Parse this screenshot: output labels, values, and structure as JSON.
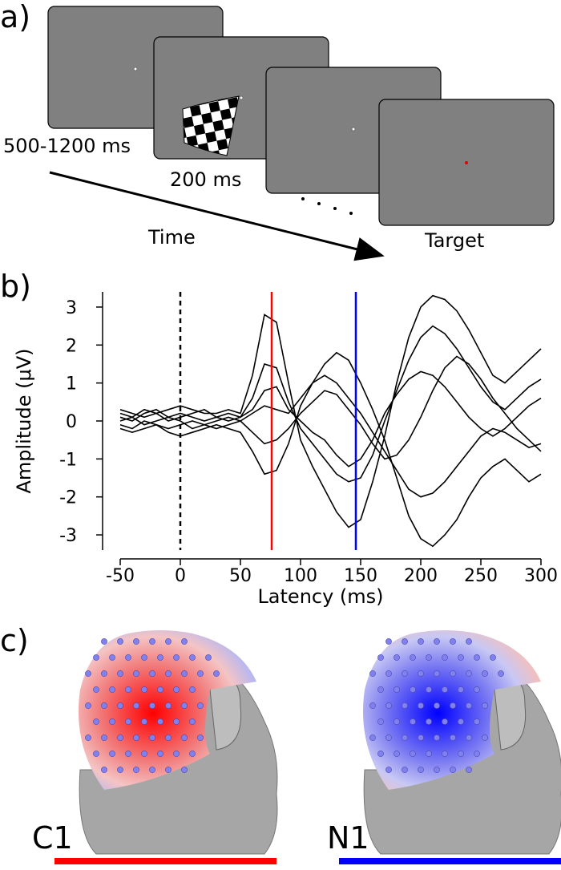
{
  "panel_labels": [
    "a)",
    "b)",
    "c)"
  ],
  "paradigm": {
    "durations": [
      "500-1200 ms",
      "200 ms"
    ],
    "time_label": "Time",
    "target_label": "Target"
  },
  "chart_data": {
    "type": "line",
    "xlabel": "Latency (ms)",
    "ylabel": "Amplitude (μV)",
    "x": [
      -50,
      -40,
      -30,
      -20,
      -10,
      0,
      10,
      20,
      30,
      40,
      50,
      60,
      70,
      80,
      90,
      100,
      110,
      120,
      130,
      140,
      150,
      160,
      170,
      180,
      190,
      200,
      210,
      220,
      230,
      240,
      250,
      260,
      270,
      280,
      290,
      300
    ],
    "series": [
      {
        "color": "#000000",
        "values": [
          0.3,
          0.2,
          0.1,
          0.2,
          0.3,
          0.4,
          0.3,
          0.2,
          0.2,
          0.3,
          0.2,
          1.2,
          2.8,
          2.6,
          1.0,
          -0.5,
          -1.2,
          -1.8,
          -2.4,
          -2.8,
          -2.6,
          -1.6,
          -0.4,
          1.0,
          2.2,
          3.0,
          3.3,
          3.2,
          2.9,
          2.4,
          1.8,
          1.2,
          1.0,
          1.3,
          1.6,
          1.9
        ]
      },
      {
        "color": "#000000",
        "values": [
          -0.2,
          -0.3,
          -0.2,
          -0.1,
          -0.3,
          -0.4,
          -0.3,
          -0.2,
          -0.1,
          -0.2,
          -0.3,
          -0.8,
          -1.4,
          -1.3,
          -0.6,
          0.4,
          1.0,
          1.5,
          1.8,
          1.6,
          1.0,
          0.3,
          -0.5,
          -1.5,
          -2.5,
          -3.1,
          -3.3,
          -3.0,
          -2.6,
          -2.0,
          -1.5,
          -1.2,
          -1.0,
          -1.3,
          -1.6,
          -1.4
        ]
      },
      {
        "color": "#000000",
        "values": [
          0.1,
          0.0,
          0.2,
          0.3,
          0.1,
          0.2,
          0.1,
          0.0,
          0.1,
          0.2,
          0.1,
          0.6,
          1.5,
          1.4,
          0.5,
          -0.2,
          -0.6,
          -1.0,
          -1.4,
          -1.6,
          -1.5,
          -0.9,
          0.0,
          0.8,
          1.6,
          2.2,
          2.5,
          2.3,
          1.9,
          1.4,
          0.9,
          0.5,
          0.3,
          0.6,
          0.9,
          1.1
        ]
      },
      {
        "color": "#000000",
        "values": [
          -0.1,
          -0.2,
          0.0,
          -0.1,
          -0.2,
          -0.1,
          0.0,
          -0.1,
          -0.2,
          -0.1,
          0.0,
          0.2,
          0.4,
          0.3,
          0.2,
          0.6,
          1.0,
          1.2,
          1.0,
          0.6,
          0.2,
          -0.3,
          -0.8,
          -1.3,
          -1.8,
          -2.0,
          -1.9,
          -1.6,
          -1.2,
          -0.8,
          -0.4,
          -0.2,
          -0.3,
          -0.5,
          -0.7,
          -0.6
        ]
      },
      {
        "color": "#000000",
        "values": [
          0.2,
          0.1,
          0.3,
          0.2,
          0.0,
          0.1,
          0.2,
          0.3,
          0.1,
          0.0,
          0.1,
          0.3,
          0.8,
          0.9,
          0.3,
          0.0,
          -0.3,
          -0.5,
          -0.9,
          -1.2,
          -1.0,
          -0.5,
          0.2,
          0.7,
          1.1,
          1.3,
          1.2,
          0.9,
          0.5,
          0.1,
          -0.2,
          -0.4,
          -0.2,
          0.1,
          0.4,
          0.6
        ]
      },
      {
        "color": "#000000",
        "values": [
          0.0,
          0.1,
          -0.1,
          0.0,
          0.1,
          0.0,
          -0.2,
          -0.1,
          0.0,
          0.1,
          0.0,
          -0.3,
          -0.6,
          -0.5,
          -0.2,
          0.2,
          0.5,
          0.8,
          0.7,
          0.3,
          -0.1,
          -0.6,
          -1.0,
          -0.9,
          -0.5,
          0.1,
          0.8,
          1.4,
          1.7,
          1.5,
          1.1,
          0.6,
          0.2,
          -0.2,
          -0.5,
          -0.8
        ]
      }
    ],
    "vlines": [
      {
        "x": 0,
        "color": "#000000",
        "style": "dashed"
      },
      {
        "x": 76,
        "color": "#ff0000",
        "style": "solid"
      },
      {
        "x": 146,
        "color": "#0000ff",
        "style": "solid"
      }
    ],
    "xlim": [
      -50,
      300
    ],
    "xticks": [
      -50,
      0,
      50,
      100,
      150,
      200,
      250,
      300
    ],
    "ylim": [
      -3.4,
      3.4
    ],
    "yticks": [
      -3,
      -2,
      -1,
      0,
      1,
      2,
      3
    ]
  },
  "topomaps": [
    {
      "label": "C1",
      "color": "#ff0000"
    },
    {
      "label": "N1",
      "color": "#0000ff"
    }
  ]
}
